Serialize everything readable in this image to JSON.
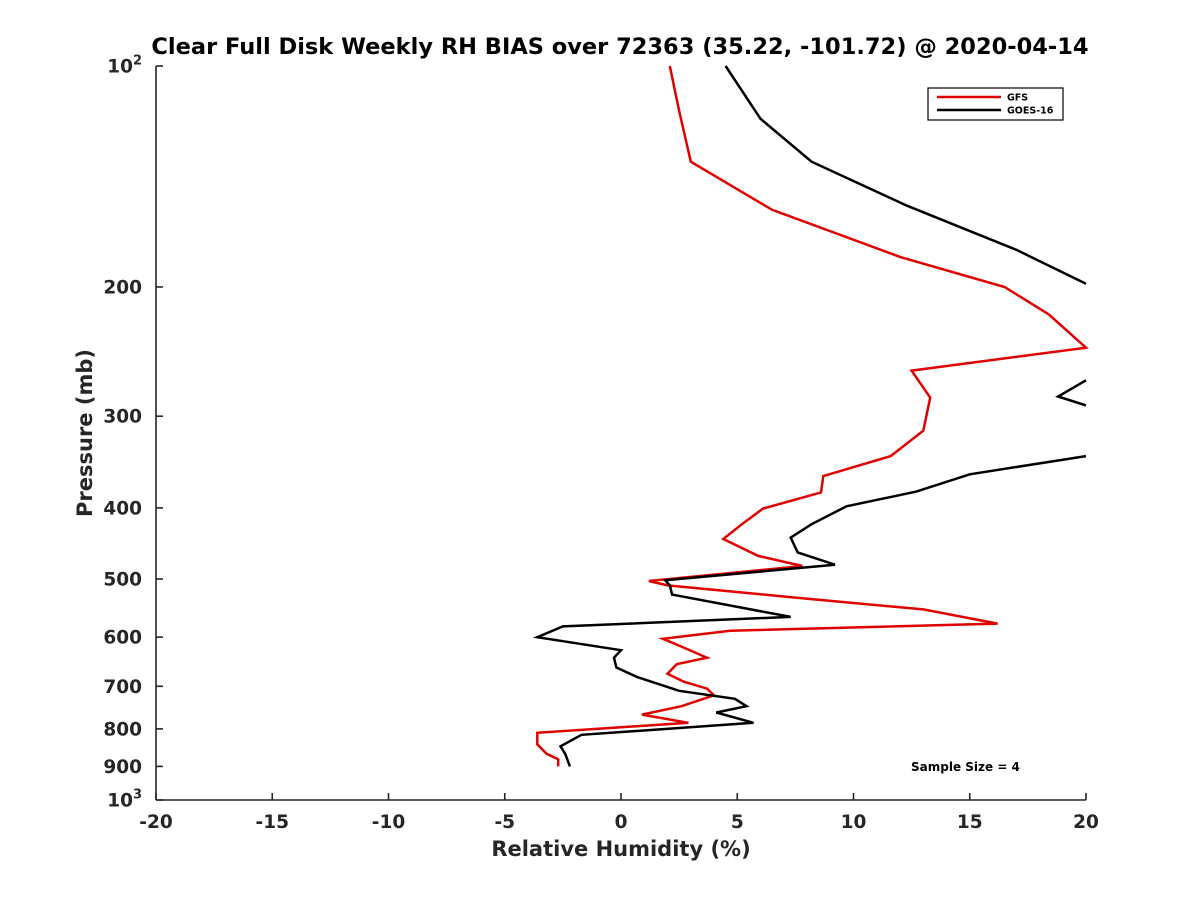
{
  "chart_data": {
    "type": "line",
    "title": "Clear Full Disk Weekly RH BIAS over 72363 (35.22, -101.72) @ 2020-04-14",
    "xlabel": "Relative Humidity (%)",
    "ylabel": "Pressure (mb)",
    "xlim": [
      -20,
      20
    ],
    "ylim": [
      100,
      1000
    ],
    "yscale": "log",
    "y_reversed": true,
    "x_ticks": [
      -20,
      -15,
      -10,
      -5,
      0,
      5,
      10,
      15,
      20
    ],
    "x_tick_labels": [
      "-20",
      "-15",
      "-10",
      "-5",
      "0",
      "5",
      "10",
      "15",
      "20"
    ],
    "y_ticks": [
      100,
      200,
      300,
      400,
      500,
      600,
      700,
      800,
      900,
      1000
    ],
    "y_tick_labels": [
      {
        "base": "10",
        "exp": "2"
      },
      {
        "base": "200"
      },
      {
        "base": "300"
      },
      {
        "base": "400"
      },
      {
        "base": "500"
      },
      {
        "base": "600"
      },
      {
        "base": "700"
      },
      {
        "base": "800"
      },
      {
        "base": "900"
      },
      {
        "base": "10",
        "exp": "3"
      }
    ],
    "legend": {
      "position": "top-right",
      "entries": [
        "GFS",
        "GOES-16"
      ]
    },
    "annotation": "Sample Size = 4",
    "grid": false,
    "series": [
      {
        "name": "GFS",
        "color": "#e00000",
        "points": [
          {
            "x": 2.1,
            "p": 100
          },
          {
            "x": 2.5,
            "p": 115
          },
          {
            "x": 3.0,
            "p": 135
          },
          {
            "x": 6.5,
            "p": 157
          },
          {
            "x": 12.0,
            "p": 182
          },
          {
            "x": 16.5,
            "p": 200
          },
          {
            "x": 18.4,
            "p": 218
          },
          {
            "x": 20.0,
            "p": 242
          },
          {
            "x": 12.5,
            "p": 260
          },
          {
            "x": 13.3,
            "p": 283
          },
          {
            "x": 13.0,
            "p": 314
          },
          {
            "x": 11.6,
            "p": 340
          },
          {
            "x": 8.7,
            "p": 362
          },
          {
            "x": 8.6,
            "p": 381
          },
          {
            "x": 6.1,
            "p": 401
          },
          {
            "x": 5.2,
            "p": 421
          },
          {
            "x": 4.4,
            "p": 441
          },
          {
            "x": 5.9,
            "p": 465
          },
          {
            "x": 7.8,
            "p": 480
          },
          {
            "x": 1.2,
            "p": 503
          },
          {
            "x": 2.0,
            "p": 510
          },
          {
            "x": 7.5,
            "p": 530
          },
          {
            "x": 13.0,
            "p": 550
          },
          {
            "x": 16.2,
            "p": 575
          },
          {
            "x": 4.7,
            "p": 588
          },
          {
            "x": 1.8,
            "p": 603
          },
          {
            "x": 2.6,
            "p": 618
          },
          {
            "x": 3.7,
            "p": 640
          },
          {
            "x": 2.4,
            "p": 653
          },
          {
            "x": 2.0,
            "p": 673
          },
          {
            "x": 2.7,
            "p": 690
          },
          {
            "x": 3.7,
            "p": 705
          },
          {
            "x": 4.0,
            "p": 720
          },
          {
            "x": 2.6,
            "p": 745
          },
          {
            "x": 0.9,
            "p": 765
          },
          {
            "x": 2.9,
            "p": 785
          },
          {
            "x": -3.6,
            "p": 810
          },
          {
            "x": -3.6,
            "p": 840
          },
          {
            "x": -3.2,
            "p": 865
          },
          {
            "x": -2.7,
            "p": 880
          },
          {
            "x": -2.7,
            "p": 900
          }
        ]
      },
      {
        "name": "GOES-16",
        "color": "#000000",
        "segments": [
          [
            {
              "x": 4.5,
              "p": 100
            },
            {
              "x": 6.0,
              "p": 118
            },
            {
              "x": 8.2,
              "p": 135
            },
            {
              "x": 12.3,
              "p": 155
            },
            {
              "x": 17.0,
              "p": 178
            },
            {
              "x": 20.0,
              "p": 198
            }
          ],
          [
            {
              "x": 20.0,
              "p": 268
            },
            {
              "x": 18.8,
              "p": 282
            },
            {
              "x": 20.0,
              "p": 290
            }
          ],
          [
            {
              "x": 20.0,
              "p": 340
            },
            {
              "x": 15.0,
              "p": 360
            },
            {
              "x": 12.7,
              "p": 380
            },
            {
              "x": 9.7,
              "p": 398
            },
            {
              "x": 8.2,
              "p": 421
            },
            {
              "x": 7.3,
              "p": 439
            },
            {
              "x": 7.6,
              "p": 460
            },
            {
              "x": 9.2,
              "p": 478
            },
            {
              "x": 1.9,
              "p": 502
            },
            {
              "x": 2.1,
              "p": 510
            },
            {
              "x": 2.2,
              "p": 525
            },
            {
              "x": 7.3,
              "p": 563
            },
            {
              "x": -2.5,
              "p": 580
            },
            {
              "x": -3.6,
              "p": 600
            },
            {
              "x": 0.0,
              "p": 625
            },
            {
              "x": -0.3,
              "p": 640
            },
            {
              "x": -0.2,
              "p": 660
            },
            {
              "x": 0.7,
              "p": 680
            },
            {
              "x": 2.5,
              "p": 710
            },
            {
              "x": 4.9,
              "p": 728
            },
            {
              "x": 5.4,
              "p": 745
            },
            {
              "x": 4.1,
              "p": 760
            },
            {
              "x": 5.7,
              "p": 785
            },
            {
              "x": -1.7,
              "p": 815
            },
            {
              "x": -2.6,
              "p": 845
            },
            {
              "x": -2.4,
              "p": 865
            },
            {
              "x": -2.2,
              "p": 900
            }
          ]
        ]
      }
    ]
  }
}
